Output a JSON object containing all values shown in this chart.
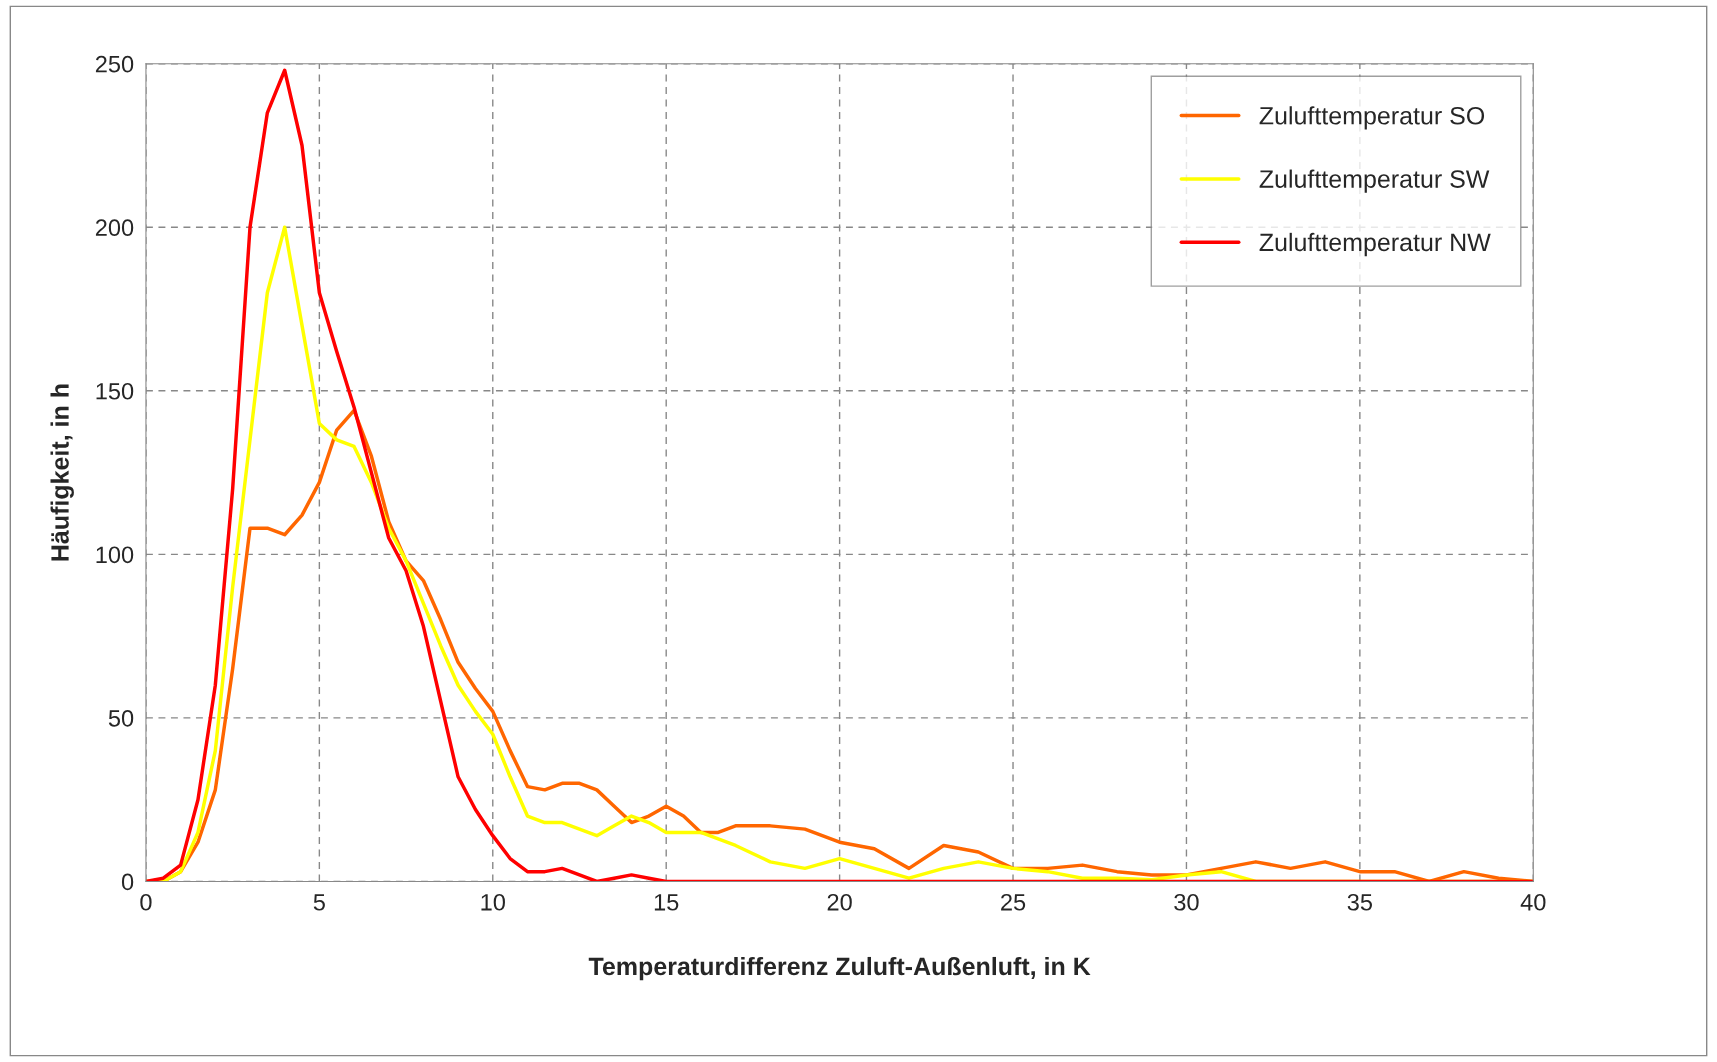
{
  "chart_data": {
    "type": "line",
    "xlabel": "Temperaturdifferenz Zuluft-Außenluft, in K",
    "ylabel": "Häufigkeit, in h",
    "xlim": [
      0,
      40
    ],
    "xticks": [
      0,
      5,
      10,
      15,
      20,
      25,
      30,
      35,
      40
    ],
    "ylim": [
      0,
      250
    ],
    "yticks": [
      0,
      50,
      100,
      150,
      200,
      250
    ],
    "grid": true,
    "legend": "top right",
    "marker": "none",
    "line_style": "solid",
    "series": [
      {
        "name": "Zulufttemperatur SO",
        "color": "#ff6600",
        "x": [
          0,
          0.5,
          1,
          1.5,
          2,
          2.5,
          3,
          3.5,
          4,
          4.5,
          5,
          5.5,
          6,
          6.5,
          7,
          7.5,
          8,
          8.5,
          9,
          9.5,
          10,
          10.5,
          11,
          11.5,
          12,
          12.5,
          13,
          13.5,
          14,
          14.5,
          15,
          15.5,
          16,
          16.5,
          17,
          18,
          19,
          20,
          21,
          22,
          23,
          24,
          25,
          26,
          27,
          28,
          29,
          30,
          31,
          32,
          33,
          34,
          35,
          36,
          37,
          38,
          39,
          40
        ],
        "values": [
          0,
          0,
          3,
          12,
          28,
          65,
          108,
          108,
          106,
          112,
          122,
          138,
          144,
          130,
          110,
          98,
          92,
          80,
          67,
          59,
          52,
          40,
          29,
          28,
          30,
          30,
          28,
          23,
          18,
          20,
          23,
          20,
          15,
          15,
          17,
          17,
          16,
          12,
          10,
          4,
          11,
          9,
          4,
          4,
          5,
          3,
          2,
          2,
          4,
          6,
          4,
          6,
          3,
          3,
          0,
          3,
          1,
          0
        ]
      },
      {
        "name": "Zulufttemperatur SW",
        "color": "#ffff00",
        "x": [
          0,
          0.5,
          1,
          1.5,
          2,
          2.5,
          3,
          3.5,
          4,
          4.5,
          5,
          5.5,
          6,
          6.5,
          7,
          7.5,
          8,
          8.5,
          9,
          9.5,
          10,
          10.5,
          11,
          11.5,
          12,
          12.5,
          13,
          13.5,
          14,
          14.5,
          15,
          16,
          17,
          18,
          19,
          20,
          21,
          22,
          23,
          24,
          25,
          26,
          27,
          28,
          29,
          30,
          31,
          32,
          40
        ],
        "values": [
          0,
          0,
          3,
          15,
          40,
          90,
          135,
          180,
          200,
          170,
          140,
          135,
          133,
          122,
          108,
          98,
          85,
          72,
          60,
          52,
          45,
          32,
          20,
          18,
          18,
          16,
          14,
          17,
          20,
          18,
          15,
          15,
          11,
          6,
          4,
          7,
          4,
          1,
          4,
          6,
          4,
          3,
          1,
          1,
          0.5,
          2,
          3,
          0,
          0
        ]
      },
      {
        "name": "Zulufttemperatur NW",
        "color": "#ff0000",
        "x": [
          0,
          0.5,
          1,
          1.5,
          2,
          2.5,
          3,
          3.5,
          4,
          4.5,
          5,
          5.5,
          6,
          6.5,
          7,
          7.5,
          8,
          8.5,
          9,
          9.5,
          10,
          10.5,
          11,
          11.5,
          12,
          12.5,
          13,
          13.5,
          14,
          14.5,
          15,
          40
        ],
        "values": [
          0,
          1,
          5,
          25,
          60,
          120,
          200,
          235,
          248,
          225,
          180,
          162,
          145,
          125,
          105,
          95,
          78,
          55,
          32,
          22,
          14,
          7,
          3,
          3,
          4,
          2,
          0,
          1,
          2,
          1,
          0,
          0
        ]
      }
    ]
  }
}
